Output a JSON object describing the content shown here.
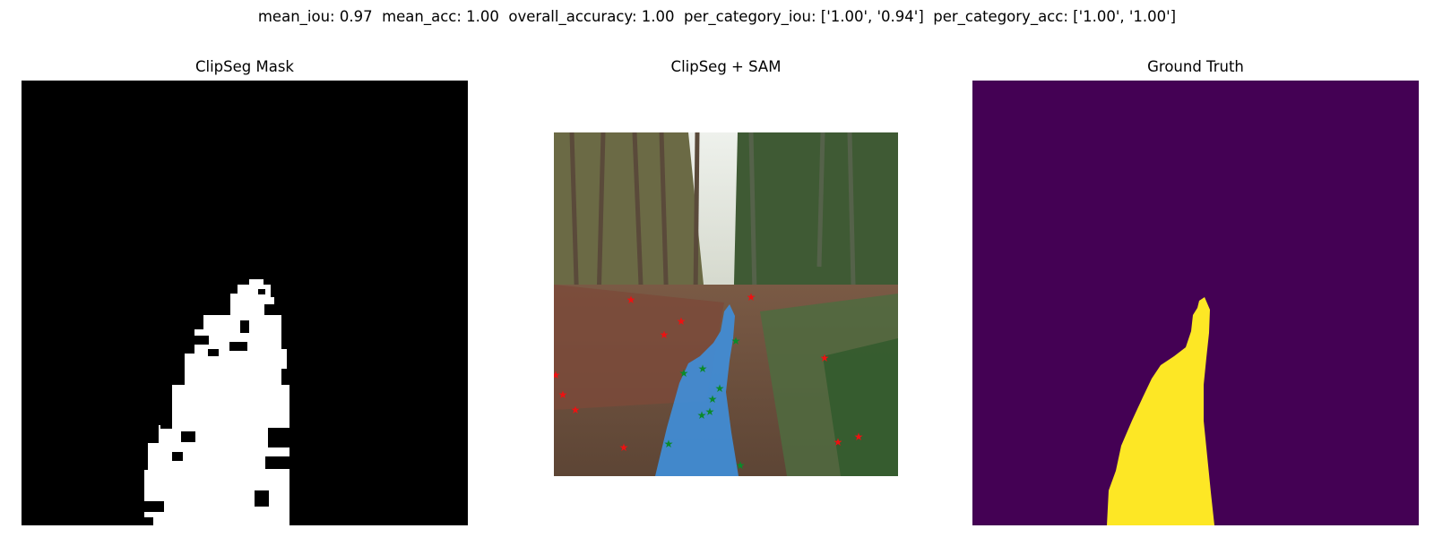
{
  "figure": {
    "suptitle": "mean_iou: 0.97  mean_acc: 1.00  overall_accuracy: 1.00  per_category_iou: ['1.00', '0.94']  per_category_acc: ['1.00', '1.00']"
  },
  "panels": [
    {
      "title": "ClipSeg Mask"
    },
    {
      "title": "ClipSeg + SAM"
    },
    {
      "title": "Ground Truth"
    }
  ],
  "colors": {
    "mask_background": "#000000",
    "mask_foreground": "#ffffff",
    "sam_overlay": "#3f8fdc",
    "positive_point": "#0a8a2a",
    "negative_point": "#ee1111",
    "gt_background": "#440154",
    "gt_foreground": "#fde725"
  },
  "point_prompts": {
    "positive_count": 11,
    "negative_count": 12
  }
}
